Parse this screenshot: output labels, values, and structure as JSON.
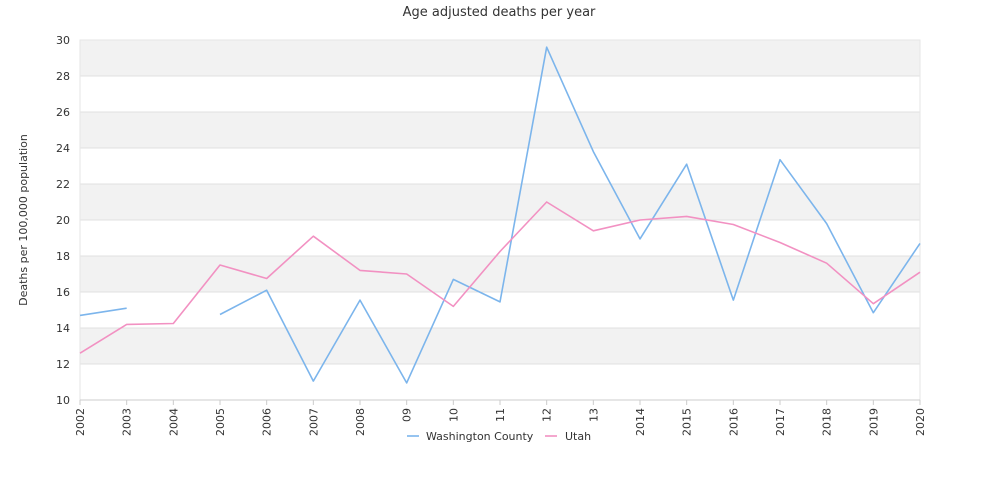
{
  "chart_data": {
    "type": "line",
    "title": "Age adjusted deaths per year",
    "xlabel": "",
    "ylabel": "Deaths per 100,000 population",
    "ylim": [
      10,
      30
    ],
    "yticks": [
      10,
      12,
      14,
      16,
      18,
      20,
      22,
      24,
      26,
      28,
      30
    ],
    "grid": "horizontal bands",
    "legend_position": "bottom",
    "categories": [
      "2002",
      "2003",
      "2004",
      "2005",
      "2006",
      "2007",
      "2008",
      "09",
      "10",
      "11",
      "12",
      "13",
      "2014",
      "2015",
      "2016",
      "2017",
      "2018",
      "2019",
      "2020"
    ],
    "series": [
      {
        "name": "Washington County",
        "color": "#7cb5ec",
        "values": [
          14.7,
          15.1,
          null,
          14.75,
          16.1,
          11.05,
          15.55,
          10.95,
          16.7,
          15.45,
          29.6,
          23.8,
          18.95,
          23.1,
          15.55,
          23.35,
          19.8,
          14.85,
          18.7
        ]
      },
      {
        "name": "Utah",
        "color": "#f291c2",
        "values": [
          12.6,
          14.2,
          14.25,
          17.5,
          16.75,
          19.1,
          17.2,
          17.0,
          15.2,
          18.25,
          21.0,
          19.4,
          20.0,
          20.2,
          19.75,
          18.75,
          17.6,
          15.35,
          17.1
        ]
      }
    ]
  }
}
